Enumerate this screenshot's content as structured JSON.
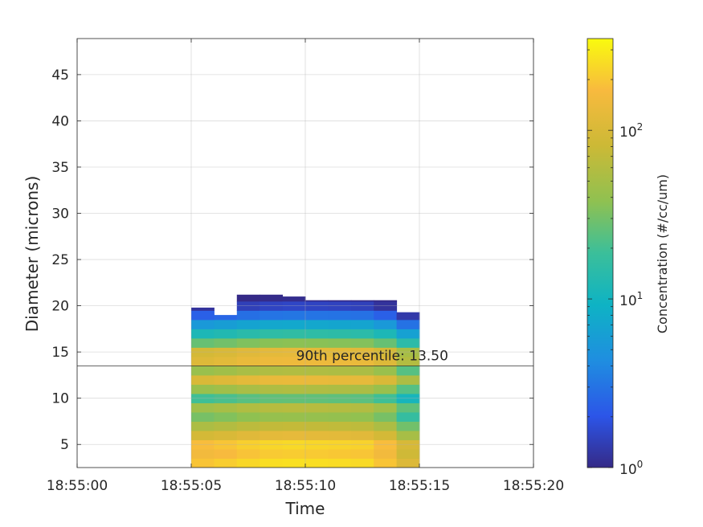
{
  "chart_data": {
    "type": "heatmap",
    "xlabel": "Time",
    "ylabel": "Diameter (microns)",
    "x_ticks": [
      "18:55:00",
      "18:55:05",
      "18:55:10",
      "18:55:15",
      "18:55:20"
    ],
    "x_tick_seconds": [
      0,
      5,
      10,
      15,
      20
    ],
    "y_ticks": [
      5,
      10,
      15,
      20,
      25,
      30,
      35,
      40,
      45
    ],
    "ylim": [
      2.5,
      48.9
    ],
    "xlim_seconds": [
      0,
      20
    ],
    "grid": true,
    "annotation": {
      "text": "90th percentile: 13.50",
      "value": 13.5
    },
    "colorbar": {
      "label": "Concentration (#/cc/um)",
      "scale": "log",
      "range": [
        1,
        350
      ],
      "ticks": [
        {
          "value": 1,
          "base": "10",
          "exp": "0"
        },
        {
          "value": 10,
          "base": "10",
          "exp": "1"
        },
        {
          "value": 100,
          "base": "10",
          "exp": "2"
        }
      ]
    },
    "time_seconds": [
      5,
      6,
      7,
      8,
      9,
      10,
      11,
      12,
      13,
      14,
      15
    ],
    "upper_bound_diameter": [
      19.8,
      18.8,
      19.0,
      21.2,
      21.0,
      20.5,
      20.6,
      20.6,
      20.6,
      19.3,
      18.4
    ],
    "profile": [
      {
        "d": 2.5,
        "conc": 250
      },
      {
        "d": 3.5,
        "conc": 200
      },
      {
        "d": 4.5,
        "conc": 230
      },
      {
        "d": 5.5,
        "conc": 120
      },
      {
        "d": 6.5,
        "conc": 70
      },
      {
        "d": 7.5,
        "conc": 40
      },
      {
        "d": 8.5,
        "conc": 60
      },
      {
        "d": 9.5,
        "conc": 25
      },
      {
        "d": 10.5,
        "conc": 55
      },
      {
        "d": 11.5,
        "conc": 130
      },
      {
        "d": 12.5,
        "conc": 55
      },
      {
        "d": 13.5,
        "conc": 140
      },
      {
        "d": 14.5,
        "conc": 120
      },
      {
        "d": 15.5,
        "conc": 35
      },
      {
        "d": 16.5,
        "conc": 15
      },
      {
        "d": 17.5,
        "conc": 7
      },
      {
        "d": 18.5,
        "conc": 3
      },
      {
        "d": 19.5,
        "conc": 1.5
      },
      {
        "d": 20.5,
        "conc": 1
      }
    ],
    "time_factor": [
      0.75,
      0.8,
      0.9,
      1.0,
      1.05,
      1.05,
      1.0,
      1.0,
      0.95,
      0.6,
      0.25
    ]
  }
}
